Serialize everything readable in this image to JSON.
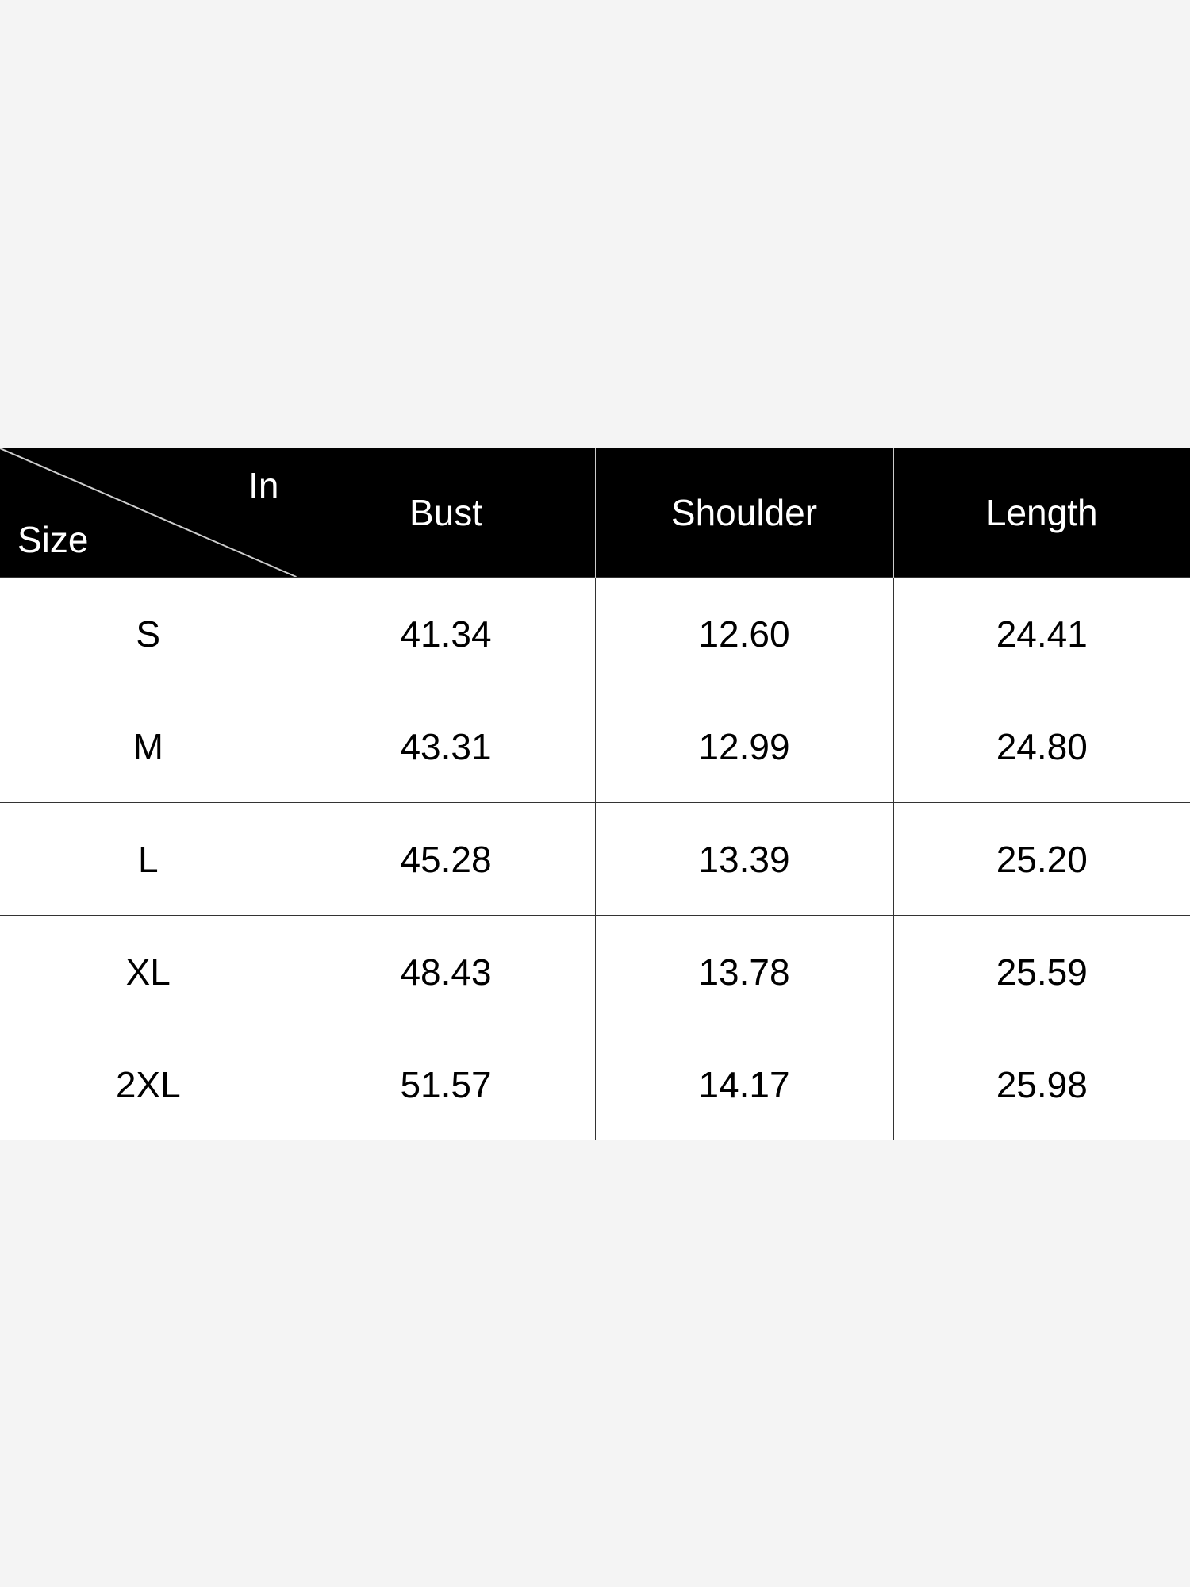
{
  "table": {
    "corner": {
      "top_right": "In",
      "bottom_left": "Size"
    },
    "headers": [
      "Bust",
      "Shoulder",
      "Length"
    ],
    "rows": [
      {
        "size": "S",
        "values": [
          "41.34",
          "12.60",
          "24.41"
        ]
      },
      {
        "size": "M",
        "values": [
          "43.31",
          "12.99",
          "24.80"
        ]
      },
      {
        "size": "L",
        "values": [
          "45.28",
          "13.39",
          "25.20"
        ]
      },
      {
        "size": "XL",
        "values": [
          "48.43",
          "13.78",
          "25.59"
        ]
      },
      {
        "size": "2XL",
        "values": [
          "51.57",
          "14.17",
          "25.98"
        ]
      }
    ]
  },
  "colors": {
    "header_bg": "#000000",
    "header_text": "#ffffff",
    "page_bg": "#f4f4f4"
  }
}
